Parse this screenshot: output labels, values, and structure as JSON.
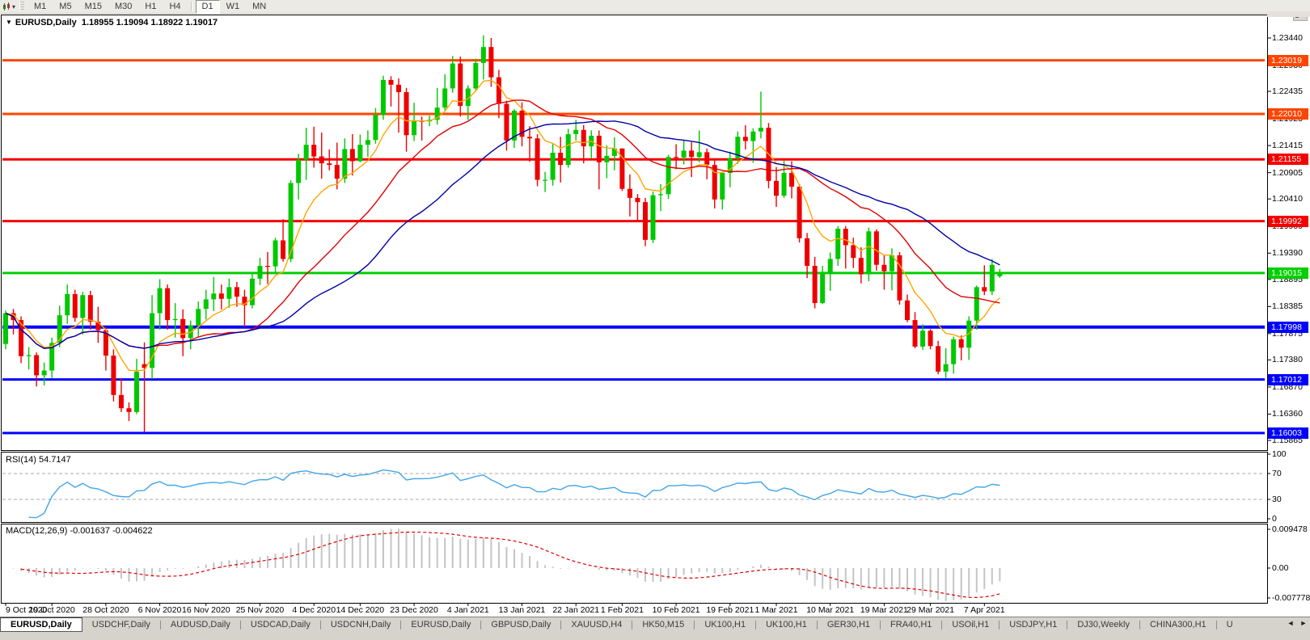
{
  "toolbar": {
    "chart_type_icon": "candlestick-chart-icon",
    "dropdown_caret": "▾",
    "timeframes": [
      {
        "label": "M1",
        "active": false
      },
      {
        "label": "M5",
        "active": false
      },
      {
        "label": "M15",
        "active": false
      },
      {
        "label": "M30",
        "active": false
      },
      {
        "label": "H1",
        "active": false
      },
      {
        "label": "H4",
        "active": false
      },
      {
        "label": "D1",
        "active": true
      },
      {
        "label": "W1",
        "active": false
      },
      {
        "label": "MN",
        "active": false
      }
    ]
  },
  "chart": {
    "collapse_arrow": "▼",
    "symbol_label": "EURUSD,Daily",
    "quote": "1.18955 1.19094 1.18922 1.19017"
  },
  "price_axis": {
    "ticks": [
      "1.23440",
      "1.22930",
      "1.22435",
      "1.21925",
      "1.21415",
      "1.20905",
      "1.20410",
      "1.19900",
      "1.19390",
      "1.18895",
      "1.18385",
      "1.17875",
      "1.17380",
      "1.16870",
      "1.16360",
      "1.15865"
    ]
  },
  "indicator_rsi": {
    "label": "RSI(14) 54.7147",
    "period": 14,
    "current": 54.7147,
    "levels": [
      70,
      30
    ],
    "range": [
      0,
      100
    ],
    "axis_labels": [
      "100",
      "70",
      "30",
      "0"
    ],
    "color": "#42A5E8"
  },
  "indicator_macd": {
    "label": "MACD(12,26,9) -0.001637 -0.004622",
    "fast": 12,
    "slow": 26,
    "signal": 9,
    "current_main": -0.001637,
    "current_signal": -0.004622,
    "axis_labels": [
      "0.009478",
      "0.00",
      "-0.007778"
    ],
    "hist_color": "#C4C4C4",
    "signal_color": "#E00000"
  },
  "date_axis": {
    "ticks": [
      {
        "label": "9 Oct 2020",
        "index": 0
      },
      {
        "label": "19 Oct 2020",
        "index": 6
      },
      {
        "label": "28 Oct 2020",
        "index": 13
      },
      {
        "label": "6 Nov 2020",
        "index": 20
      },
      {
        "label": "16 Nov 2020",
        "index": 26
      },
      {
        "label": "25 Nov 2020",
        "index": 33
      },
      {
        "label": "4 Dec 2020",
        "index": 40
      },
      {
        "label": "14 Dec 2020",
        "index": 46
      },
      {
        "label": "23 Dec 2020",
        "index": 53
      },
      {
        "label": "4 Jan 2021",
        "index": 60
      },
      {
        "label": "13 Jan 2021",
        "index": 67
      },
      {
        "label": "22 Jan 2021",
        "index": 74
      },
      {
        "label": "1 Feb 2021",
        "index": 80
      },
      {
        "label": "10 Feb 2021",
        "index": 87
      },
      {
        "label": "19 Feb 2021",
        "index": 94
      },
      {
        "label": "1 Mar 2021",
        "index": 100
      },
      {
        "label": "10 Mar 2021",
        "index": 107
      },
      {
        "label": "19 Mar 2021",
        "index": 114
      },
      {
        "label": "29 Mar 2021",
        "index": 120
      },
      {
        "label": "7 Apr 2021",
        "index": 127
      }
    ]
  },
  "tabs": {
    "items": [
      {
        "label": "EURUSD,Daily",
        "active": true
      },
      {
        "label": "USDCHF,Daily",
        "active": false
      },
      {
        "label": "AUDUSD,Daily",
        "active": false
      },
      {
        "label": "USDCAD,Daily",
        "active": false
      },
      {
        "label": "USDCNH,Daily",
        "active": false
      },
      {
        "label": "EURUSD,Daily",
        "active": false
      },
      {
        "label": "GBPUSD,Daily",
        "active": false
      },
      {
        "label": "XAUUSD,H4",
        "active": false
      },
      {
        "label": "HK50,M15",
        "active": false
      },
      {
        "label": "UK100,H1",
        "active": false
      },
      {
        "label": "UK100,H1",
        "active": false
      },
      {
        "label": "GER30,H1",
        "active": false
      },
      {
        "label": "FRA40,H1",
        "active": false
      },
      {
        "label": "USOil,H1",
        "active": false
      },
      {
        "label": "USDJPY,H1",
        "active": false
      },
      {
        "label": "DJ30,Weekly",
        "active": false
      },
      {
        "label": "CHINA300,H1",
        "active": false
      },
      {
        "label": "U",
        "active": false,
        "partial": true
      }
    ],
    "scroll_left": "◄",
    "scroll_right": "►"
  },
  "chart_data": {
    "type": "candlestick",
    "symbol": "EURUSD",
    "timeframe": "Daily",
    "open": 1.18955,
    "high": 1.19094,
    "low": 1.18922,
    "close": 1.19017,
    "y_axis": {
      "top_price": 1.2344,
      "bottom_price": 1.15865
    },
    "colors": {
      "up": "#00C800",
      "down": "#EE0000"
    },
    "hlines": [
      {
        "price": 1.23019,
        "label": "1.23019",
        "color": "#FF4500",
        "width": 3
      },
      {
        "price": 1.2201,
        "label": "1.22010",
        "color": "#FF4500",
        "width": 3
      },
      {
        "price": 1.21155,
        "label": "1.21155",
        "color": "#F40000",
        "width": 3
      },
      {
        "price": 1.19992,
        "label": "1.19992",
        "color": "#F40000",
        "width": 3
      },
      {
        "price": 1.19015,
        "label": "1.19015",
        "color": "#00CF00",
        "width": 3
      },
      {
        "price": 1.17998,
        "label": "1.17998",
        "color": "#0000FF",
        "width": 4
      },
      {
        "price": 1.17012,
        "label": "1.17012",
        "color": "#0000FF",
        "width": 3
      },
      {
        "price": 1.16003,
        "label": "1.16003",
        "color": "#0000FF",
        "width": 3
      }
    ],
    "moving_averages": [
      {
        "name": "fast",
        "type": "ema",
        "period": 8,
        "color": "#FFA500"
      },
      {
        "name": "mid",
        "type": "sma",
        "period": 20,
        "color": "#E00000"
      },
      {
        "name": "slow",
        "type": "sma",
        "period": 34,
        "color": "#0000A8"
      }
    ],
    "candles": [
      [
        1.1768,
        1.1831,
        1.1758,
        1.1826
      ],
      [
        1.1826,
        1.1834,
        1.1786,
        1.1813
      ],
      [
        1.1813,
        1.182,
        1.1732,
        1.1745
      ],
      [
        1.1745,
        1.1762,
        1.172,
        1.1747
      ],
      [
        1.1747,
        1.1752,
        1.1688,
        1.1709
      ],
      [
        1.1709,
        1.1733,
        1.169,
        1.1718
      ],
      [
        1.1718,
        1.178,
        1.1704,
        1.177
      ],
      [
        1.177,
        1.184,
        1.1762,
        1.1822
      ],
      [
        1.1822,
        1.188,
        1.1806,
        1.1862
      ],
      [
        1.1862,
        1.187,
        1.181,
        1.1817
      ],
      [
        1.1817,
        1.1866,
        1.1786,
        1.186
      ],
      [
        1.186,
        1.1868,
        1.1795,
        1.181
      ],
      [
        1.181,
        1.1838,
        1.177,
        1.1794
      ],
      [
        1.1794,
        1.18,
        1.1718,
        1.1746
      ],
      [
        1.1746,
        1.1758,
        1.166,
        1.1672
      ],
      [
        1.1672,
        1.1704,
        1.164,
        1.1647
      ],
      [
        1.1647,
        1.1658,
        1.1623,
        1.164
      ],
      [
        1.164,
        1.174,
        1.1636,
        1.1716
      ],
      [
        1.173,
        1.1771,
        1.1602,
        1.1723
      ],
      [
        1.1723,
        1.186,
        1.1702,
        1.1826
      ],
      [
        1.1826,
        1.189,
        1.1795,
        1.1873
      ],
      [
        1.1873,
        1.188,
        1.1795,
        1.1813
      ],
      [
        1.1813,
        1.1845,
        1.178,
        1.1815
      ],
      [
        1.1815,
        1.1833,
        1.1745,
        1.1779
      ],
      [
        1.1779,
        1.1812,
        1.1758,
        1.1803
      ],
      [
        1.1803,
        1.1848,
        1.1782,
        1.1834
      ],
      [
        1.1834,
        1.187,
        1.1814,
        1.1852
      ],
      [
        1.1852,
        1.1894,
        1.183,
        1.1863
      ],
      [
        1.1863,
        1.188,
        1.1833,
        1.1853
      ],
      [
        1.1853,
        1.1891,
        1.1836,
        1.1875
      ],
      [
        1.1875,
        1.1885,
        1.1838,
        1.1857
      ],
      [
        1.1857,
        1.187,
        1.18,
        1.1841
      ],
      [
        1.1841,
        1.19,
        1.1835,
        1.1891
      ],
      [
        1.1891,
        1.193,
        1.1879,
        1.1915
      ],
      [
        1.1915,
        1.1941,
        1.1881,
        1.1914
      ],
      [
        1.1914,
        1.1968,
        1.19,
        1.1963
      ],
      [
        1.1963,
        1.2003,
        1.1923,
        1.1928
      ],
      [
        1.1928,
        1.2076,
        1.1922,
        1.2071
      ],
      [
        1.2071,
        1.2126,
        1.204,
        1.2115
      ],
      [
        1.2115,
        1.2175,
        1.2077,
        1.2143
      ],
      [
        1.2143,
        1.2177,
        1.21,
        1.2121
      ],
      [
        1.2121,
        1.2166,
        1.2079,
        1.2108
      ],
      [
        1.2108,
        1.2134,
        1.2095,
        1.2105
      ],
      [
        1.2105,
        1.2147,
        1.2059,
        1.2079
      ],
      [
        1.2079,
        1.2155,
        1.2071,
        1.2135
      ],
      [
        1.2135,
        1.2163,
        1.2085,
        1.2112
      ],
      [
        1.2112,
        1.2162,
        1.211,
        1.2143
      ],
      [
        1.2143,
        1.217,
        1.212,
        1.2152
      ],
      [
        1.2152,
        1.2212,
        1.2145,
        1.2199
      ],
      [
        1.2199,
        1.2273,
        1.219,
        1.2265
      ],
      [
        1.2265,
        1.2272,
        1.2215,
        1.2256
      ],
      [
        1.2256,
        1.2268,
        1.2166,
        1.2242
      ],
      [
        1.2242,
        1.225,
        1.213,
        1.2161
      ],
      [
        1.2161,
        1.2222,
        1.215,
        1.2188
      ],
      [
        1.2188,
        1.2196,
        1.2151,
        1.2187
      ],
      [
        1.2187,
        1.2198,
        1.2178,
        1.219
      ],
      [
        1.219,
        1.225,
        1.2181,
        1.2213
      ],
      [
        1.2213,
        1.2276,
        1.2208,
        1.2249
      ],
      [
        1.2249,
        1.231,
        1.2241,
        1.2296
      ],
      [
        1.2296,
        1.2309,
        1.2196,
        1.2216
      ],
      [
        1.2216,
        1.2255,
        1.219,
        1.2249
      ],
      [
        1.2249,
        1.2305,
        1.2245,
        1.2297
      ],
      [
        1.2297,
        1.2349,
        1.2266,
        1.2327
      ],
      [
        1.2327,
        1.2344,
        1.2252,
        1.227
      ],
      [
        1.227,
        1.2284,
        1.2193,
        1.222
      ],
      [
        1.222,
        1.2226,
        1.2132,
        1.2151
      ],
      [
        1.2151,
        1.221,
        1.2137,
        1.2207
      ],
      [
        1.2207,
        1.2223,
        1.214,
        1.2158
      ],
      [
        1.2158,
        1.2178,
        1.2111,
        1.2155
      ],
      [
        1.2155,
        1.2163,
        1.2065,
        1.2077
      ],
      [
        1.2077,
        1.2092,
        1.2054,
        1.2077
      ],
      [
        1.2077,
        1.2145,
        1.2066,
        1.2128
      ],
      [
        1.2128,
        1.2158,
        1.2072,
        1.2105
      ],
      [
        1.2105,
        1.2173,
        1.21,
        1.2163
      ],
      [
        1.2163,
        1.219,
        1.2151,
        1.2171
      ],
      [
        1.2171,
        1.218,
        1.2108,
        1.214
      ],
      [
        1.214,
        1.217,
        1.2118,
        1.216
      ],
      [
        1.216,
        1.217,
        1.2059,
        1.211
      ],
      [
        1.211,
        1.2142,
        1.208,
        1.2122
      ],
      [
        1.2122,
        1.2157,
        1.2095,
        1.2136
      ],
      [
        1.2136,
        1.2136,
        1.2056,
        1.206
      ],
      [
        1.206,
        1.2087,
        1.2008,
        1.2043
      ],
      [
        1.2043,
        1.205,
        1.1999,
        1.2035
      ],
      [
        1.2035,
        1.2043,
        1.1952,
        1.1964
      ],
      [
        1.1964,
        1.2055,
        1.1958,
        1.2048
      ],
      [
        1.2048,
        1.2069,
        1.2018,
        1.205
      ],
      [
        1.205,
        1.2124,
        1.2041,
        1.212
      ],
      [
        1.212,
        1.2144,
        1.2097,
        1.2119
      ],
      [
        1.2119,
        1.2152,
        1.2106,
        1.2132
      ],
      [
        1.2132,
        1.2148,
        1.2082,
        1.212
      ],
      [
        1.212,
        1.217,
        1.211,
        1.2129
      ],
      [
        1.2129,
        1.2136,
        1.2078,
        1.2105
      ],
      [
        1.2105,
        1.2114,
        1.2023,
        1.204
      ],
      [
        1.204,
        1.2092,
        1.2021,
        1.209
      ],
      [
        1.209,
        1.213,
        1.2063,
        1.2118
      ],
      [
        1.2118,
        1.2168,
        1.2107,
        1.2158
      ],
      [
        1.2158,
        1.218,
        1.2134,
        1.215
      ],
      [
        1.215,
        1.2174,
        1.2109,
        1.2168
      ],
      [
        1.2168,
        1.2243,
        1.2155,
        1.2175
      ],
      [
        1.2175,
        1.2184,
        1.2061,
        1.2075
      ],
      [
        1.2075,
        1.2101,
        1.2026,
        1.2047
      ],
      [
        1.2047,
        1.2113,
        1.2043,
        1.209
      ],
      [
        1.209,
        1.2112,
        1.2042,
        1.2064
      ],
      [
        1.2064,
        1.2069,
        1.1959,
        1.1967
      ],
      [
        1.1967,
        1.1977,
        1.1892,
        1.1915
      ],
      [
        1.1915,
        1.1932,
        1.1835,
        1.1845
      ],
      [
        1.1845,
        1.1915,
        1.1843,
        1.19
      ],
      [
        1.19,
        1.194,
        1.1868,
        1.1928
      ],
      [
        1.1928,
        1.199,
        1.1915,
        1.1985
      ],
      [
        1.1985,
        1.199,
        1.191,
        1.1954
      ],
      [
        1.1954,
        1.1968,
        1.1911,
        1.193
      ],
      [
        1.193,
        1.195,
        1.1882,
        1.1899
      ],
      [
        1.1899,
        1.1987,
        1.1886,
        1.198
      ],
      [
        1.198,
        1.1984,
        1.1906,
        1.1917
      ],
      [
        1.1917,
        1.1936,
        1.187,
        1.1905
      ],
      [
        1.1905,
        1.1948,
        1.1869,
        1.1935
      ],
      [
        1.1935,
        1.1941,
        1.1842,
        1.185
      ],
      [
        1.185,
        1.1861,
        1.1809,
        1.1813
      ],
      [
        1.1813,
        1.1828,
        1.176,
        1.1763
      ],
      [
        1.1763,
        1.1805,
        1.1757,
        1.1793
      ],
      [
        1.1793,
        1.1796,
        1.1758,
        1.1764
      ],
      [
        1.1764,
        1.1774,
        1.1711,
        1.1716
      ],
      [
        1.1716,
        1.176,
        1.1704,
        1.173
      ],
      [
        1.173,
        1.1782,
        1.1712,
        1.1777
      ],
      [
        1.1777,
        1.1784,
        1.1737,
        1.1761
      ],
      [
        1.1761,
        1.182,
        1.1738,
        1.1812
      ],
      [
        1.1812,
        1.1878,
        1.1795,
        1.1875
      ],
      [
        1.1875,
        1.1916,
        1.186,
        1.1867
      ],
      [
        1.1867,
        1.1928,
        1.186,
        1.1917
      ],
      [
        1.18955,
        1.19094,
        1.18922,
        1.19017
      ]
    ]
  }
}
